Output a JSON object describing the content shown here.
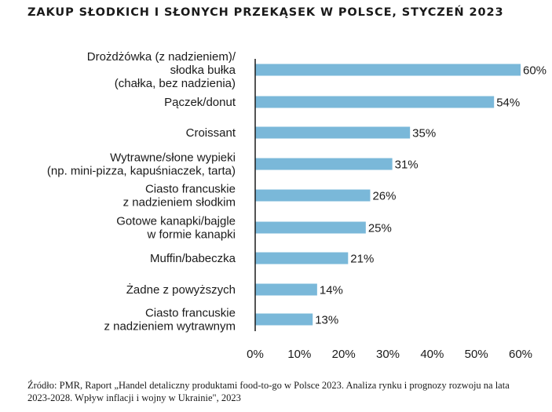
{
  "title": "ZAKUP SŁODKICH I SŁONYCH PRZEKĄSEK W POLSCE, STYCZEŃ 2023",
  "source": "Źródło: PMR, Raport „Handel detaliczny produktami food-to-go w Polsce 2023. Analiza rynku i prognozy rozwoju na lata 2023-2028. Wpływ inflacji i wojny w Ukrainie\", 2023",
  "colors": {
    "bar": "#7ab8d9",
    "axis": "#1a1a1a"
  },
  "chart_data": {
    "type": "bar",
    "orientation": "horizontal",
    "title": "ZAKUP SŁODKICH I SŁONYCH PRZEKĄSEK W POLSCE, STYCZEŃ 2023",
    "categories": [
      [
        "Drożdżówka (z nadzieniem)/",
        "słodka bułka",
        "(chałka, bez nadzienia)"
      ],
      [
        "Pączek/donut"
      ],
      [
        "Croissant"
      ],
      [
        "Wytrawne/słone wypieki",
        "(np. mini-pizza, kapuśniaczek, tarta)"
      ],
      [
        "Ciasto francuskie",
        "z nadzieniem słodkim"
      ],
      [
        "Gotowe kanapki/bajgle",
        "w formie kanapki"
      ],
      [
        "Muffin/babeczka"
      ],
      [
        "Żadne z powyższych"
      ],
      [
        "Ciasto francuskie",
        "z nadzieniem wytrawnym"
      ]
    ],
    "values": [
      60,
      54,
      35,
      31,
      26,
      25,
      21,
      14,
      13
    ],
    "value_labels": [
      "60%",
      "54%",
      "35%",
      "31%",
      "26%",
      "25%",
      "21%",
      "14%",
      "13%"
    ],
    "xlim": [
      0,
      60
    ],
    "xticks": [
      0,
      10,
      20,
      30,
      40,
      50,
      60
    ],
    "xtick_labels": [
      "0%",
      "10%",
      "20%",
      "30%",
      "40%",
      "50%",
      "60%"
    ],
    "grid": false,
    "legend": "none"
  }
}
